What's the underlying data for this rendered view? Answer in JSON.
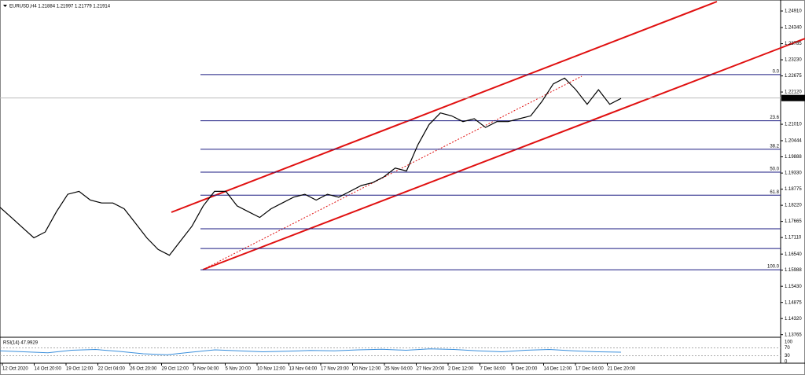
{
  "header": "EURUSD,H4  1.21884 1.21997 1.21779 1.21914",
  "chart": {
    "price_ticks": [
      {
        "value": 1.2491,
        "label": "1.24910"
      },
      {
        "value": 1.2434,
        "label": "1.24340"
      },
      {
        "value": 1.23785,
        "label": "1.23785"
      },
      {
        "value": 1.2323,
        "label": "1.23230"
      },
      {
        "value": 1.22675,
        "label": "1.22675"
      },
      {
        "value": 1.2212,
        "label": "1.22120"
      },
      {
        "value": 1.2101,
        "label": "1.21010"
      },
      {
        "value": 1.20444,
        "label": "1.20444"
      },
      {
        "value": 1.19888,
        "label": "1.19888"
      },
      {
        "value": 1.1933,
        "label": "1.19330"
      },
      {
        "value": 1.18775,
        "label": "1.18775"
      },
      {
        "value": 1.1822,
        "label": "1.18220"
      },
      {
        "value": 1.17665,
        "label": "1.17665"
      },
      {
        "value": 1.1711,
        "label": "1.17110"
      },
      {
        "value": 1.1654,
        "label": "1.16540"
      },
      {
        "value": 1.15988,
        "label": "1.15988"
      },
      {
        "value": 1.1543,
        "label": "1.15430"
      },
      {
        "value": 1.14875,
        "label": "1.14875"
      },
      {
        "value": 1.1432,
        "label": "1.14320"
      },
      {
        "value": 1.13765,
        "label": "1.13765"
      }
    ],
    "current_price": {
      "value": 1.21914,
      "label": "1.21914"
    },
    "fib_levels": [
      {
        "value": 1.2272,
        "label": "0.0"
      },
      {
        "value": 1.2113,
        "label": "23.6"
      },
      {
        "value": 1.2015,
        "label": "38.2"
      },
      {
        "value": 1.1936,
        "label": "50.0"
      },
      {
        "value": 1.1857,
        "label": "61.8"
      },
      {
        "value": 1.16,
        "label": "100.0"
      }
    ],
    "extra_levels": [
      1.1741,
      1.1673
    ],
    "close_prices": [
      1.1815,
      1.178,
      1.1745,
      1.171,
      1.173,
      1.18,
      1.186,
      1.187,
      1.184,
      1.183,
      1.183,
      1.181,
      1.176,
      1.171,
      1.167,
      1.165,
      1.17,
      1.175,
      1.182,
      1.187,
      1.187,
      1.182,
      1.18,
      1.178,
      1.181,
      1.183,
      1.185,
      1.186,
      1.184,
      1.186,
      1.185,
      1.187,
      1.189,
      1.19,
      1.192,
      1.195,
      1.194,
      1.203,
      1.21,
      1.214,
      1.213,
      1.211,
      1.212,
      1.209,
      1.211,
      1.211,
      1.212,
      1.213,
      1.218,
      1.224,
      1.226,
      1.222,
      1.217,
      1.222,
      1.217,
      1.219
    ],
    "dates": [
      "12 Oct 2020",
      "14 Oct 20:00",
      "19 Oct 12:00",
      "22 Oct 04:00",
      "26 Oct 20:00",
      "29 Oct 12:00",
      "3 Nov 04:00",
      "5 Nov 20:00",
      "10 Nov 12:00",
      "13 Nov 04:00",
      "17 Nov 20:00",
      "20 Nov 12:00",
      "25 Nov 04:00",
      "27 Nov 20:00",
      "2 Dec 12:00",
      "7 Dec 04:00",
      "9 Dec 20:00",
      "14 Dec 12:00",
      "17 Dec 04:00",
      "21 Dec 20:00"
    ]
  },
  "rsi": {
    "label": "RSI(14) 47.9929",
    "levels": [
      100,
      70,
      30,
      0
    ],
    "values": [
      55,
      50,
      45,
      58,
      62,
      52,
      40,
      35,
      48,
      60,
      55,
      50,
      53,
      57,
      55,
      60,
      63,
      58,
      65,
      62,
      55,
      50,
      58,
      62,
      55,
      50,
      48
    ]
  }
}
